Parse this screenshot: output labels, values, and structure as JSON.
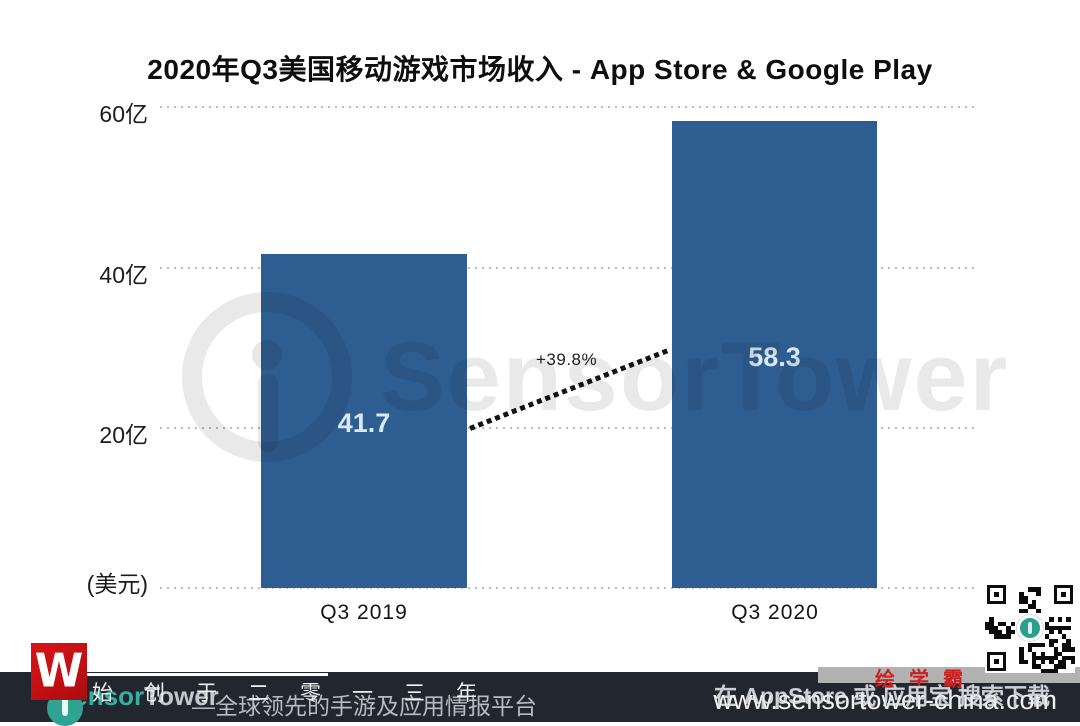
{
  "title": "2020年Q3美国移动游戏市场收入 - App Store & Google Play",
  "chart_data": {
    "type": "bar",
    "title": "2020年Q3美国移动游戏市场收入 - App Store & Google Play",
    "categories": [
      "Q3  2019",
      "Q3 2020"
    ],
    "values": [
      41.7,
      58.3
    ],
    "unit_label": "(美元)",
    "y_ticks": [
      "60亿",
      "40亿",
      "20亿"
    ],
    "ylim": [
      0,
      60
    ],
    "growth_label": "+39.8%",
    "bar_color": "#2e5d91",
    "value_label_color": "#d9e8f5",
    "grid": "dotted horizontal gridlines",
    "legend_position": "none"
  },
  "watermark": {
    "brand": "SensorTower",
    "icon": "sensor-tower-ring-logo"
  },
  "qr": {
    "name": "qr-code",
    "center_logo_color": "#27a08e"
  },
  "footer": {
    "founded_text": "始创于二零一三年",
    "brand_sensor": "Sensor",
    "brand_tower": "Tower",
    "tagline": "—全球领先的手游及应用情报平台",
    "app_hint": "在 AppStore 或 应用宝 搜索下载",
    "website": "www.sensortower-china.com",
    "badge": "绘学霸"
  }
}
